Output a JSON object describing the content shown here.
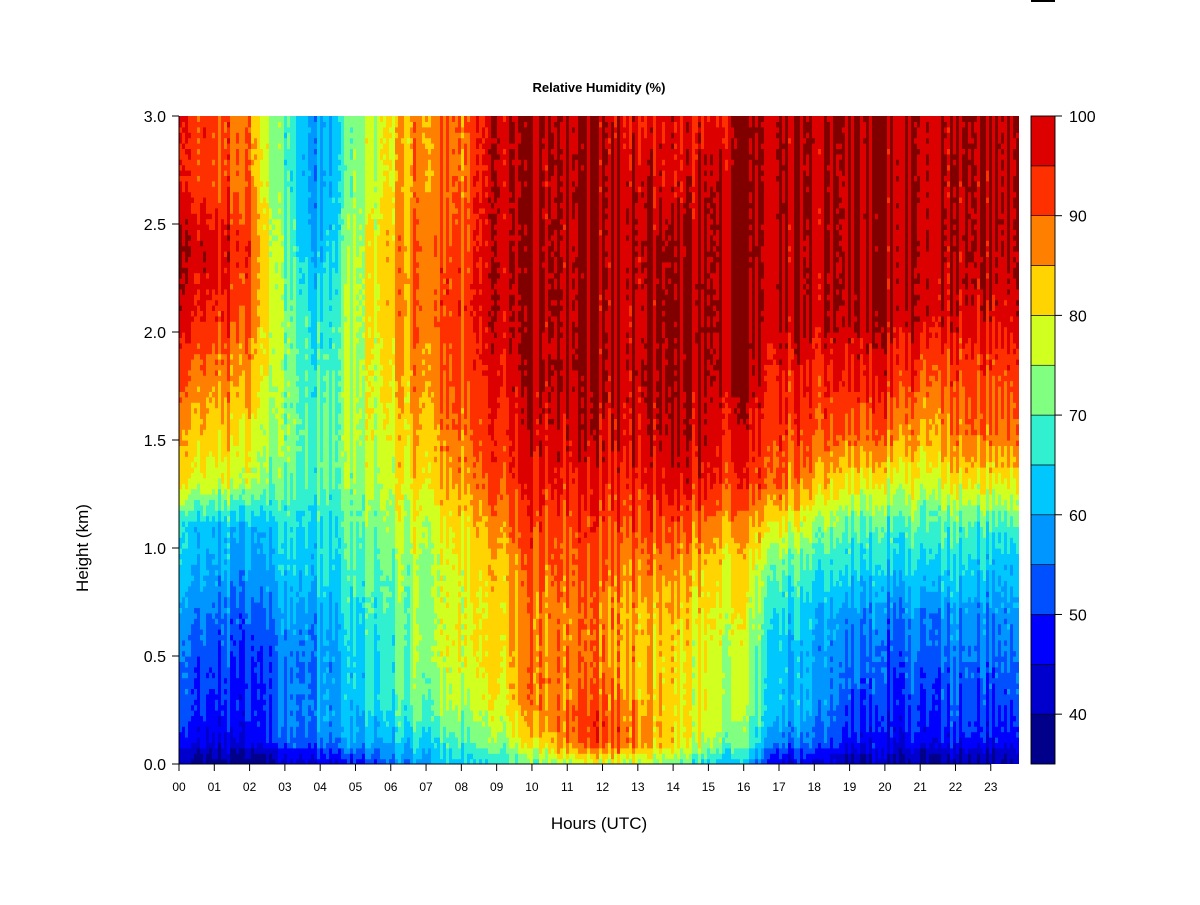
{
  "chart_data": {
    "type": "heatmap",
    "title": "Relative Humidity (%)",
    "xlabel": "Hours (UTC)",
    "ylabel": "Height (km)",
    "x_tick_labels": [
      "00",
      "01",
      "02",
      "03",
      "04",
      "05",
      "06",
      "07",
      "08",
      "09",
      "10",
      "11",
      "12",
      "13",
      "14",
      "15",
      "16",
      "17",
      "18",
      "19",
      "20",
      "21",
      "22",
      "23"
    ],
    "x_tick_values": [
      0,
      1,
      2,
      3,
      4,
      5,
      6,
      7,
      8,
      9,
      10,
      11,
      12,
      13,
      14,
      15,
      16,
      17,
      18,
      19,
      20,
      21,
      22,
      23
    ],
    "xlim": [
      0,
      23.8
    ],
    "y_tick_labels": [
      "0.0",
      "0.5",
      "1.0",
      "1.5",
      "2.0",
      "2.5",
      "3.0"
    ],
    "y_tick_values": [
      0.0,
      0.5,
      1.0,
      1.5,
      2.0,
      2.5,
      3.0
    ],
    "ylim": [
      0.0,
      3.0
    ],
    "colorbar": {
      "levels": [
        35,
        40,
        45,
        50,
        55,
        60,
        65,
        70,
        75,
        80,
        85,
        90,
        95,
        100
      ],
      "colors": [
        "#00008B",
        "#0000CD",
        "#0000FF",
        "#0050FF",
        "#0096FF",
        "#00C8FF",
        "#30F0D0",
        "#80FF80",
        "#D0FF20",
        "#FFD400",
        "#FF8000",
        "#FF3000",
        "#DD0000",
        "#800000"
      ],
      "tick_labels": [
        "40",
        "50",
        "60",
        "70",
        "80",
        "90",
        "100"
      ],
      "tick_values": [
        40,
        50,
        60,
        70,
        80,
        90,
        100
      ]
    },
    "height_levels_km": [
      0.0,
      0.05,
      0.1,
      0.2,
      0.3,
      0.5,
      0.7,
      0.9,
      1.1,
      1.3,
      1.5,
      1.8,
      2.1,
      2.4,
      2.7,
      3.0
    ],
    "hour_columns": [
      0,
      1,
      2,
      3,
      4,
      5,
      6,
      7,
      8,
      9,
      10,
      11,
      12,
      13,
      14,
      15,
      16,
      17,
      18,
      19,
      20,
      21,
      22,
      23
    ],
    "z_rows": [
      [
        38,
        38,
        38,
        42,
        45,
        45,
        55,
        60,
        62,
        65,
        70,
        75,
        75,
        75,
        70,
        65,
        60,
        45,
        45,
        40,
        40,
        40,
        40,
        40
      ],
      [
        40,
        40,
        40,
        45,
        50,
        52,
        58,
        62,
        65,
        68,
        75,
        82,
        85,
        82,
        75,
        70,
        65,
        50,
        50,
        42,
        42,
        42,
        42,
        42
      ],
      [
        45,
        45,
        48,
        52,
        55,
        58,
        60,
        65,
        68,
        72,
        80,
        88,
        92,
        88,
        80,
        75,
        70,
        55,
        55,
        48,
        45,
        48,
        48,
        48
      ],
      [
        48,
        48,
        50,
        55,
        58,
        60,
        65,
        70,
        72,
        75,
        85,
        90,
        92,
        88,
        80,
        78,
        72,
        60,
        58,
        50,
        48,
        50,
        52,
        50
      ],
      [
        50,
        50,
        50,
        55,
        58,
        62,
        68,
        72,
        75,
        78,
        88,
        88,
        90,
        85,
        80,
        78,
        75,
        62,
        60,
        52,
        50,
        52,
        52,
        52
      ],
      [
        52,
        52,
        52,
        55,
        58,
        62,
        68,
        75,
        78,
        80,
        88,
        88,
        88,
        85,
        80,
        78,
        75,
        62,
        60,
        55,
        52,
        55,
        55,
        55
      ],
      [
        55,
        55,
        55,
        58,
        60,
        65,
        70,
        75,
        78,
        80,
        88,
        88,
        88,
        85,
        82,
        80,
        78,
        65,
        62,
        58,
        55,
        58,
        58,
        58
      ],
      [
        60,
        60,
        60,
        62,
        65,
        68,
        72,
        75,
        78,
        82,
        90,
        90,
        90,
        88,
        85,
        82,
        80,
        70,
        68,
        65,
        62,
        65,
        65,
        62
      ],
      [
        62,
        62,
        62,
        65,
        65,
        70,
        75,
        78,
        80,
        85,
        92,
        92,
        92,
        92,
        90,
        88,
        85,
        80,
        75,
        70,
        68,
        70,
        70,
        68
      ],
      [
        78,
        78,
        78,
        70,
        70,
        72,
        78,
        82,
        85,
        90,
        95,
        95,
        95,
        95,
        95,
        95,
        92,
        90,
        85,
        80,
        78,
        78,
        80,
        80
      ],
      [
        82,
        82,
        82,
        72,
        70,
        75,
        80,
        85,
        88,
        92,
        98,
        98,
        98,
        98,
        98,
        98,
        95,
        92,
        92,
        88,
        88,
        85,
        88,
        88
      ],
      [
        88,
        88,
        88,
        72,
        68,
        75,
        82,
        88,
        90,
        95,
        100,
        100,
        100,
        100,
        100,
        100,
        100,
        95,
        95,
        95,
        95,
        92,
        92,
        92
      ],
      [
        95,
        95,
        92,
        72,
        65,
        75,
        85,
        90,
        92,
        98,
        100,
        100,
        100,
        100,
        100,
        100,
        100,
        100,
        100,
        100,
        100,
        100,
        98,
        98
      ],
      [
        98,
        98,
        95,
        70,
        60,
        75,
        85,
        90,
        90,
        98,
        100,
        100,
        100,
        100,
        100,
        100,
        100,
        100,
        100,
        100,
        100,
        100,
        100,
        100
      ],
      [
        92,
        92,
        90,
        68,
        58,
        72,
        82,
        88,
        88,
        98,
        100,
        100,
        100,
        100,
        95,
        100,
        100,
        100,
        100,
        100,
        100,
        100,
        100,
        100
      ],
      [
        92,
        92,
        90,
        68,
        58,
        72,
        82,
        88,
        88,
        98,
        100,
        100,
        100,
        95,
        95,
        95,
        100,
        100,
        100,
        100,
        100,
        100,
        100,
        100
      ]
    ]
  }
}
